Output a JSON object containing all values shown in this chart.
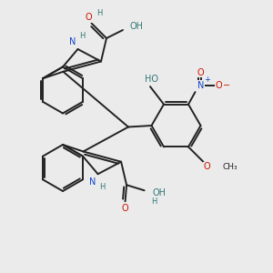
{
  "bg_color": "#ebebeb",
  "bond_color": "#222222",
  "bond_width": 1.4,
  "N_color": "#1144cc",
  "O_color": "#cc1100",
  "H_color": "#337777",
  "figsize": [
    3.0,
    3.0
  ],
  "dpi": 100,
  "xlim": [
    0,
    10
  ],
  "ylim": [
    0,
    10
  ]
}
